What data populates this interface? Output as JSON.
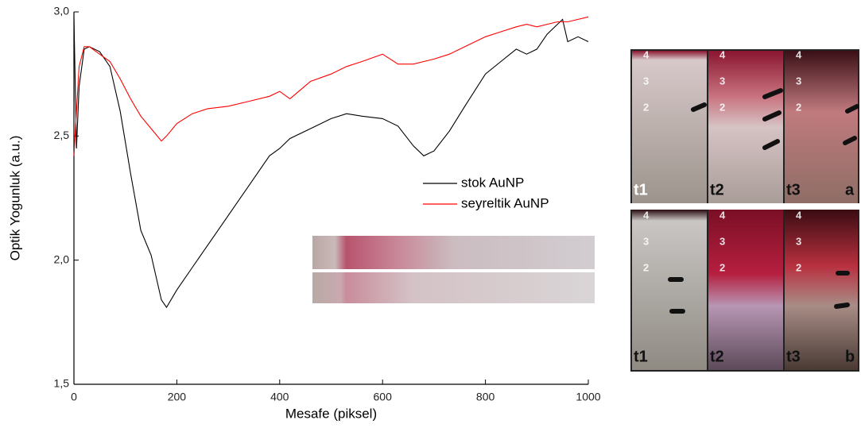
{
  "chart_data": {
    "type": "line",
    "xlabel": "Mesafe (piksel)",
    "ylabel": "Optik Yogunluk (a.u.)",
    "xlim": [
      0,
      1000
    ],
    "ylim": [
      1.5,
      3.0
    ],
    "xticks": [
      0,
      200,
      400,
      600,
      800,
      1000
    ],
    "yticks": [
      {
        "value": 1.5,
        "label": "1,5"
      },
      {
        "value": 2.0,
        "label": "2,0"
      },
      {
        "value": 2.5,
        "label": "2,5"
      },
      {
        "value": 3.0,
        "label": "3,0"
      }
    ],
    "x": [
      0,
      5,
      10,
      20,
      30,
      50,
      70,
      90,
      110,
      130,
      150,
      170,
      180,
      200,
      230,
      260,
      300,
      340,
      380,
      400,
      420,
      460,
      500,
      530,
      560,
      600,
      630,
      660,
      680,
      700,
      730,
      760,
      800,
      830,
      860,
      880,
      900,
      920,
      940,
      950,
      960,
      980,
      1000
    ],
    "series": [
      {
        "name": "stok AuNP",
        "color": "#000000",
        "values": [
          2.98,
          2.45,
          2.7,
          2.85,
          2.86,
          2.84,
          2.78,
          2.6,
          2.35,
          2.12,
          2.02,
          1.84,
          1.81,
          1.88,
          1.97,
          2.06,
          2.18,
          2.3,
          2.42,
          2.45,
          2.49,
          2.53,
          2.57,
          2.59,
          2.58,
          2.57,
          2.54,
          2.46,
          2.42,
          2.44,
          2.52,
          2.62,
          2.75,
          2.8,
          2.85,
          2.83,
          2.85,
          2.91,
          2.95,
          2.97,
          2.88,
          2.9,
          2.88
        ]
      },
      {
        "name": "seyreltik AuNP",
        "color": "#ff0000",
        "values": [
          2.42,
          2.6,
          2.78,
          2.86,
          2.86,
          2.83,
          2.8,
          2.73,
          2.65,
          2.58,
          2.53,
          2.48,
          2.5,
          2.55,
          2.59,
          2.61,
          2.62,
          2.64,
          2.66,
          2.68,
          2.65,
          2.72,
          2.75,
          2.78,
          2.8,
          2.83,
          2.79,
          2.79,
          2.8,
          2.81,
          2.83,
          2.86,
          2.9,
          2.92,
          2.94,
          2.95,
          2.94,
          2.95,
          2.96,
          2.96,
          2.96,
          2.97,
          2.98
        ]
      }
    ]
  },
  "photo": {
    "panels": [
      {
        "label": "a",
        "tubes": [
          "t1",
          "t2",
          "t3"
        ]
      },
      {
        "label": "b",
        "tubes": [
          "t1",
          "t2",
          "t3"
        ]
      }
    ],
    "tube_scale": [
      "4",
      "3",
      "2"
    ]
  }
}
